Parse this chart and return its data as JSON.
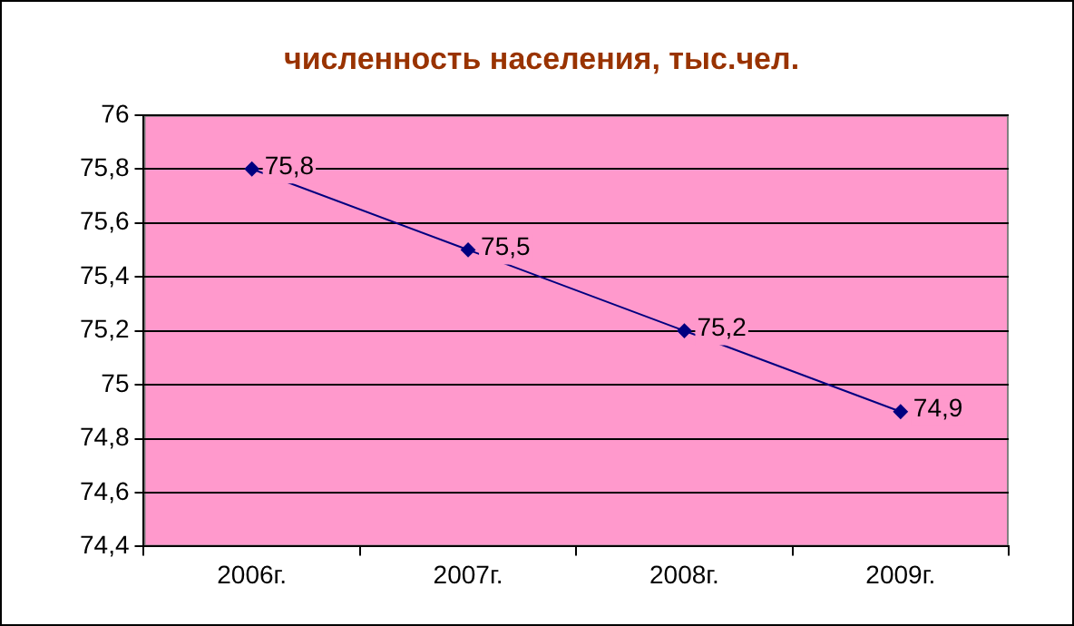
{
  "chart_data": {
    "type": "line",
    "title": "численность населения, тыс.чел.",
    "categories": [
      "2006г.",
      "2007г.",
      "2008г.",
      "2009г."
    ],
    "series": [
      {
        "color": "#000080",
        "values": [
          75.8,
          75.5,
          75.2,
          74.9
        ],
        "value_labels": [
          "75,8",
          "75,5",
          "75,2",
          "74,9"
        ]
      }
    ],
    "ylim": [
      74.4,
      76
    ],
    "yticks": [
      {
        "value": 74.4,
        "label": "74,4"
      },
      {
        "value": 74.6,
        "label": "74,6"
      },
      {
        "value": 74.8,
        "label": "74,8"
      },
      {
        "value": 75,
        "label": "75"
      },
      {
        "value": 75.2,
        "label": "75,2"
      },
      {
        "value": 75.4,
        "label": "75,4"
      },
      {
        "value": 75.6,
        "label": "75,6"
      },
      {
        "value": 75.8,
        "label": "75,8"
      },
      {
        "value": 76,
        "label": "76"
      }
    ],
    "grid": "y",
    "legend": false,
    "marker": "diamond",
    "line_style": "solid"
  }
}
